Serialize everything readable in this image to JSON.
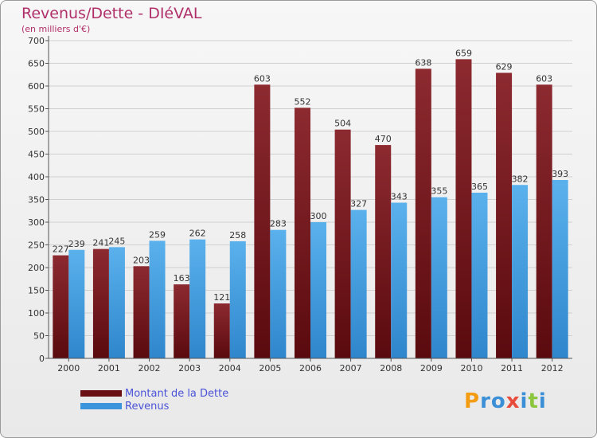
{
  "header": {
    "title": "Revenus/Dette - DIéVAL",
    "subtitle": "(en milliers d'€)"
  },
  "logo": {
    "letters": [
      "P",
      "r",
      "o",
      "x",
      "i",
      "t",
      "i"
    ],
    "colors": [
      "#f39c12",
      "#3a8fd6",
      "#3a8fd6",
      "#e84c3d",
      "#3a8fd6",
      "#8cc63f",
      "#3a8fd6"
    ]
  },
  "colors": {
    "debt": "#7a1a1e",
    "revenue": "#4aa3e4",
    "grid": "#d0d0d0",
    "axis": "#555555"
  },
  "chart_data": {
    "type": "bar",
    "categories": [
      "2000",
      "2001",
      "2002",
      "2003",
      "2004",
      "2005",
      "2006",
      "2007",
      "2008",
      "2009",
      "2010",
      "2011",
      "2012"
    ],
    "series": [
      {
        "name": "Montant de la Dette",
        "values": [
          227,
          241,
          203,
          163,
          121,
          603,
          552,
          504,
          470,
          638,
          659,
          629,
          603
        ]
      },
      {
        "name": "Revenus",
        "values": [
          239,
          245,
          259,
          262,
          258,
          283,
          300,
          327,
          343,
          355,
          365,
          382,
          393
        ]
      }
    ],
    "yticks": [
      0,
      50,
      100,
      150,
      200,
      250,
      300,
      350,
      400,
      450,
      500,
      550,
      600,
      650,
      700
    ],
    "ylim": [
      0,
      700
    ],
    "grid": true,
    "legend": "bottom-left"
  }
}
